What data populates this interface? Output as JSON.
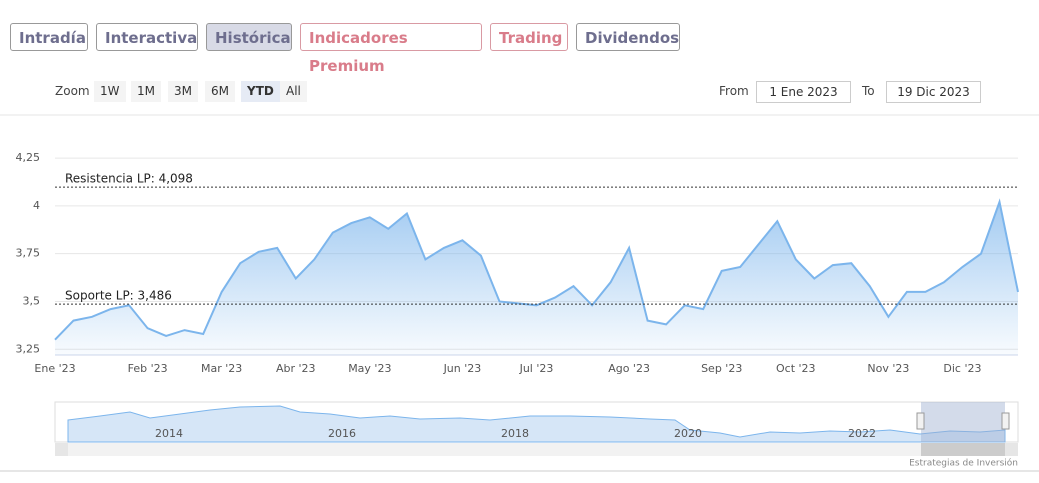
{
  "tabs": [
    "Intradía",
    "Interactiva",
    "Histórica",
    "Indicadores Premium",
    "Trading",
    "Dividendos"
  ],
  "zoom": {
    "label": "Zoom",
    "buttons": [
      "1W",
      "1M",
      "3M",
      "6M",
      "YTD",
      "All"
    ]
  },
  "range": {
    "from_label": "From",
    "from": "1 Ene 2023",
    "to_label": "To",
    "to": "19 Dic 2023"
  },
  "chart_data": {
    "type": "line",
    "categories": [
      "Ene '23",
      null,
      null,
      null,
      null,
      "Feb '23",
      null,
      null,
      null,
      "Mar '23",
      null,
      null,
      null,
      "Abr '23",
      null,
      null,
      null,
      "May '23",
      null,
      null,
      null,
      null,
      "Jun '23",
      null,
      null,
      null,
      "Jul '23",
      null,
      null,
      null,
      null,
      "Ago '23",
      null,
      null,
      null,
      null,
      "Sep '23",
      null,
      null,
      null,
      "Oct '23",
      null,
      null,
      null,
      null,
      "Nov '23",
      null,
      null,
      null,
      "Dic '23",
      null,
      null,
      null
    ],
    "series": [
      {
        "color": "#7cb5ec",
        "values": [
          3.3,
          3.4,
          3.42,
          3.46,
          3.48,
          3.36,
          3.32,
          3.35,
          3.33,
          3.55,
          3.7,
          3.76,
          3.78,
          3.62,
          3.72,
          3.86,
          3.91,
          3.94,
          3.88,
          3.96,
          3.72,
          3.78,
          3.82,
          3.74,
          3.5,
          3.49,
          3.48,
          3.52,
          3.58,
          3.48,
          3.6,
          3.78,
          3.4,
          3.38,
          3.48,
          3.46,
          3.66,
          3.68,
          3.8,
          3.92,
          3.72,
          3.62,
          3.69,
          3.7,
          3.58,
          3.42,
          3.55,
          3.55,
          3.6,
          3.68,
          3.75,
          4.02,
          3.55
        ]
      }
    ],
    "ylim": [
      3.22,
      4.47
    ],
    "yticks": [
      {
        "value": 3.25,
        "label": "3,25"
      },
      {
        "value": 3.5,
        "label": "3,5"
      },
      {
        "value": 3.75,
        "label": "3,75"
      },
      4,
      {
        "value": 4.25,
        "label": "4,25"
      }
    ],
    "grid": true,
    "plot_lines": [
      {
        "label": "Resistencia LP: 4,098",
        "value": 4.098
      },
      {
        "label": "Soporte LP: 3,486",
        "value": 3.486
      }
    ]
  },
  "navigator": {
    "labels": [
      "2014",
      "2016",
      "2018",
      "2020",
      "2022"
    ]
  },
  "credit": "Estrategias de Inversión"
}
